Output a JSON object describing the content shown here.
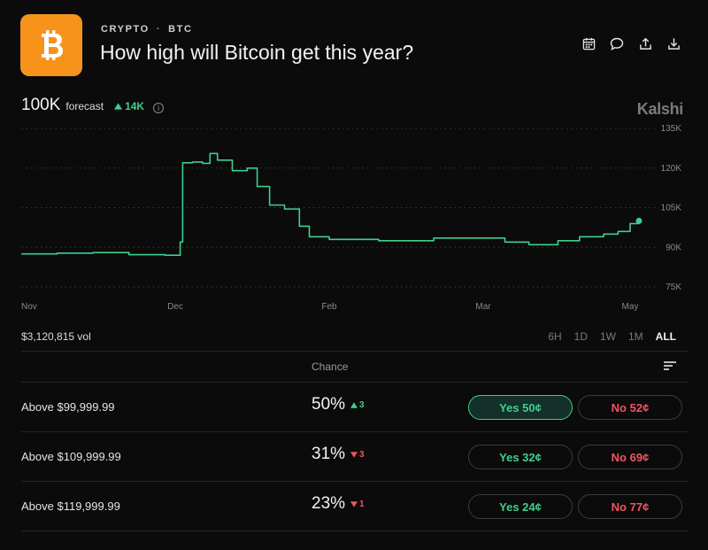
{
  "header": {
    "category": "CRYPTO",
    "ticker": "BTC",
    "separator": "·",
    "title": "How high will Bitcoin get this year?",
    "logo_symbol": "bitcoin-logo",
    "logo_color": "#f7931a",
    "toolbar": [
      "calendar-icon",
      "comment-icon",
      "share-icon",
      "download-icon"
    ]
  },
  "forecast": {
    "value": "100K",
    "label": "forecast",
    "delta": "14K",
    "delta_direction": "up"
  },
  "brand": "Kalshi",
  "chart_data": {
    "type": "line",
    "x_ticks": [
      "Nov",
      "Dec",
      "Feb",
      "Mar",
      "May"
    ],
    "y_ticks": [
      "135K",
      "120K",
      "105K",
      "90K",
      "75K"
    ],
    "ylim": [
      75000,
      135000
    ],
    "grid": true,
    "series_color": "#3ecf8e",
    "points": [
      [
        "Nov 1",
        87500
      ],
      [
        "Nov 8",
        87800
      ],
      [
        "Nov 15",
        88000
      ],
      [
        "Nov 22",
        87200
      ],
      [
        "Nov 29",
        87000
      ],
      [
        "Dec 1",
        87000
      ],
      [
        "Dec 3",
        92000
      ],
      [
        "Dec 4",
        122000
      ],
      [
        "Dec 8",
        122300
      ],
      [
        "Dec 12",
        121800
      ],
      [
        "Dec 15",
        125500
      ],
      [
        "Dec 18",
        123000
      ],
      [
        "Dec 24",
        119000
      ],
      [
        "Dec 30",
        120000
      ],
      [
        "Jan 3",
        113000
      ],
      [
        "Jan 8",
        106000
      ],
      [
        "Jan 14",
        104500
      ],
      [
        "Jan 20",
        98000
      ],
      [
        "Jan 24",
        94000
      ],
      [
        "Feb 1",
        93000
      ],
      [
        "Feb 10",
        92500
      ],
      [
        "Feb 20",
        93500
      ],
      [
        "Mar 1",
        93500
      ],
      [
        "Mar 10",
        92000
      ],
      [
        "Mar 20",
        91000
      ],
      [
        "Apr 1",
        92500
      ],
      [
        "Apr 10",
        94000
      ],
      [
        "Apr 20",
        95000
      ],
      [
        "Apr 26",
        96000
      ],
      [
        "May 1",
        99000
      ],
      [
        "May 5",
        100000
      ]
    ]
  },
  "volume": "$3,120,815 vol",
  "ranges": [
    "6H",
    "1D",
    "1W",
    "1M",
    "ALL"
  ],
  "active_range": "ALL",
  "table_header": {
    "chance": "Chance"
  },
  "markets": [
    {
      "name": "Above $99,999.99",
      "chance": "50%",
      "change": "3",
      "direction": "up",
      "yes": "Yes 50¢",
      "no": "No 52¢"
    },
    {
      "name": "Above $109,999.99",
      "chance": "31%",
      "change": "3",
      "direction": "down",
      "yes": "Yes 32¢",
      "no": "No 69¢"
    },
    {
      "name": "Above $119,999.99",
      "chance": "23%",
      "change": "1",
      "direction": "down",
      "yes": "Yes 24¢",
      "no": "No 77¢"
    }
  ]
}
